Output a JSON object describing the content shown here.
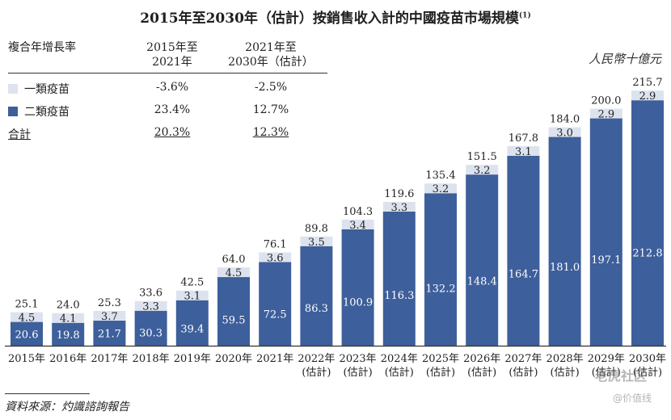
{
  "title": "2015年至2030年（估計）按銷售收入計的中國疫苗市場規模",
  "title_note": "(1)",
  "unit": "人民幣十億元",
  "cagr_table": {
    "header": "複合年增長率",
    "col1": [
      "2015年至",
      "2021年"
    ],
    "col2": [
      "2021年至",
      "2030年（估計）"
    ],
    "rows": [
      {
        "label": "一類疫苗",
        "v1": "-3.6%",
        "v2": "-2.5%"
      },
      {
        "label": "二類疫苗",
        "v1": "23.4%",
        "v2": "12.7%"
      },
      {
        "label": "合計",
        "v1": "20.3%",
        "v2": "12.3%"
      }
    ]
  },
  "colors": {
    "type2": "#3d5f9b",
    "type1": "#dde3ee",
    "text_dark": "#222222"
  },
  "chart_data": {
    "type": "bar",
    "stacked": true,
    "title": "2015年至2030年（估計）按銷售收入計的中國疫苗市場規模",
    "ylabel": "人民幣十億元",
    "categories": [
      [
        "2015年"
      ],
      [
        "2016年"
      ],
      [
        "2017年"
      ],
      [
        "2018年"
      ],
      [
        "2019年"
      ],
      [
        "2020年"
      ],
      [
        "2021年"
      ],
      [
        "2022年",
        "(估計)"
      ],
      [
        "2023年",
        "(估計)"
      ],
      [
        "2024年",
        "(估計)"
      ],
      [
        "2025年",
        "(估計)"
      ],
      [
        "2026年",
        "(估計)"
      ],
      [
        "2027年",
        "(估計)"
      ],
      [
        "2028年",
        "(估計)"
      ],
      [
        "2029年",
        "(估計)"
      ],
      [
        "2030年",
        "(估計)"
      ]
    ],
    "series": [
      {
        "name": "二類疫苗",
        "color": "#3d5f9b",
        "values": [
          20.6,
          19.8,
          21.7,
          30.3,
          39.4,
          59.5,
          72.5,
          86.3,
          100.9,
          116.3,
          132.2,
          148.4,
          164.7,
          181.0,
          197.1,
          212.8
        ]
      },
      {
        "name": "一類疫苗",
        "color": "#dde3ee",
        "values": [
          4.5,
          4.1,
          3.7,
          3.3,
          3.1,
          4.5,
          3.6,
          3.5,
          3.4,
          3.3,
          3.2,
          3.2,
          3.1,
          3.0,
          2.9,
          2.9
        ]
      }
    ],
    "totals": [
      25.1,
      24.0,
      25.3,
      33.6,
      42.5,
      64.0,
      76.1,
      89.8,
      104.3,
      119.6,
      135.4,
      151.5,
      167.8,
      184.0,
      200.0,
      215.7
    ],
    "ylim": [
      0,
      215.7
    ]
  },
  "source": "資料來源：灼識諮詢報告",
  "watermark": "老虎社区",
  "watermark2": "@价值线"
}
